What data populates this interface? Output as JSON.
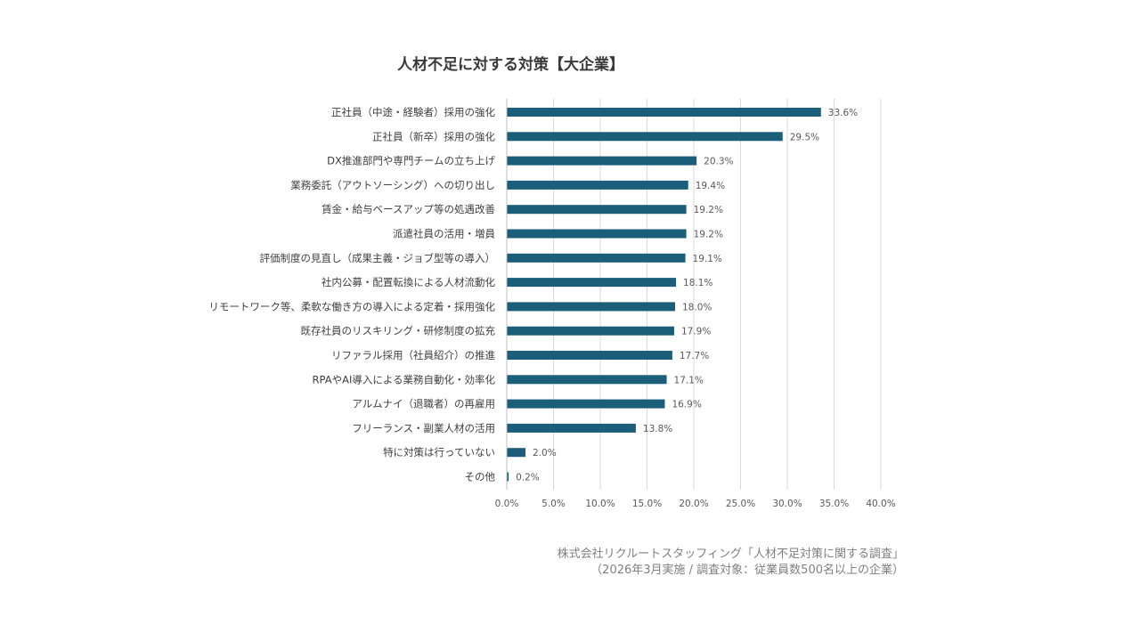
{
  "chart_data": {
    "type": "bar",
    "orientation": "horizontal",
    "title": "人材不足に対する対策【大企業】",
    "categories": [
      "正社員（中途・経験者）採用の強化",
      "正社員（新卒）採用の強化",
      "DX推進部門や専門チームの立ち上げ",
      "業務委託（アウトソーシング）への切り出し",
      "賃金・給与ベースアップ等の処遇改善",
      "派遣社員の活用・増員",
      "評価制度の見直し（成果主義・ジョブ型等の導入）",
      "社内公募・配置転換による人材流動化",
      "リモートワーク等、柔軟な働き方の導入による定着・採用強化",
      "既存社員のリスキリング・研修制度の拡充",
      "リファラル採用（社員紹介）の推進",
      "RPAやAI導入による業務自動化・効率化",
      "アルムナイ（退職者）の再雇用",
      "フリーランス・副業人材の活用",
      "特に対策は行っていない",
      "その他"
    ],
    "values": [
      33.6,
      29.5,
      20.3,
      19.4,
      19.2,
      19.2,
      19.1,
      18.1,
      18.0,
      17.9,
      17.7,
      17.1,
      16.9,
      13.8,
      2.0,
      0.2
    ],
    "value_labels": [
      "33.6%",
      "29.5%",
      "20.3%",
      "19.4%",
      "19.2%",
      "19.2%",
      "19.1%",
      "18.1%",
      "18.0%",
      "17.9%",
      "17.7%",
      "17.1%",
      "16.9%",
      "13.8%",
      "2.0%",
      "0.2%"
    ],
    "xlim": [
      0,
      40
    ],
    "x_ticks": [
      0,
      5,
      10,
      15,
      20,
      25,
      30,
      35,
      40
    ],
    "x_tick_labels": [
      "0.0%",
      "5.0%",
      "10.0%",
      "15.0%",
      "20.0%",
      "25.0%",
      "30.0%",
      "35.0%",
      "40.0%"
    ],
    "grid": true,
    "bar_color": "#1a5e7a",
    "grid_color": "#d9d9d9"
  },
  "source": {
    "line1": "株式会社リクルートスタッフィング「人材不足対策に関する調査」",
    "line2": "（2026年3月実施 / 調査対象：従業員数500名以上の企業）"
  }
}
